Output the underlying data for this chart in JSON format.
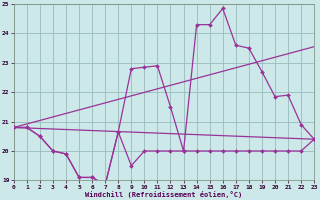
{
  "background_color": "#cce8e8",
  "grid_color": "#99bbbb",
  "line_color": "#993399",
  "xlim": [
    0,
    23
  ],
  "ylim": [
    19,
    25
  ],
  "yticks": [
    19,
    20,
    21,
    22,
    23,
    24,
    25
  ],
  "xticks": [
    0,
    1,
    2,
    3,
    4,
    5,
    6,
    7,
    8,
    9,
    10,
    11,
    12,
    13,
    14,
    15,
    16,
    17,
    18,
    19,
    20,
    21,
    22,
    23
  ],
  "xlabel": "Windchill (Refroidissement éolien,°C)",
  "series_a_x": [
    0,
    1,
    2,
    3,
    4,
    5,
    6,
    7,
    8,
    9,
    10,
    11,
    12,
    13,
    14,
    15,
    16,
    17,
    18,
    19,
    20,
    21,
    22,
    23
  ],
  "series_a_y": [
    20.8,
    20.8,
    20.5,
    20.0,
    19.9,
    19.1,
    19.1,
    18.85,
    20.65,
    19.5,
    20.0,
    20.0,
    20.0,
    20.0,
    20.0,
    20.0,
    20.0,
    20.0,
    20.0,
    20.0,
    20.0,
    20.0,
    20.0,
    20.4
  ],
  "series_b_x": [
    0,
    1,
    2,
    3,
    4,
    5,
    6,
    7,
    8,
    9,
    10,
    11,
    12,
    13,
    14,
    15,
    16,
    17,
    18,
    19,
    20,
    21,
    22,
    23
  ],
  "series_b_y": [
    20.8,
    20.8,
    20.5,
    20.0,
    19.9,
    19.1,
    19.1,
    18.85,
    20.65,
    22.8,
    22.85,
    22.9,
    21.5,
    20.0,
    24.3,
    24.3,
    24.85,
    23.6,
    23.5,
    22.7,
    21.85,
    21.9,
    20.9,
    20.4
  ],
  "trend1_x": [
    0,
    23
  ],
  "trend1_y": [
    20.8,
    23.55
  ],
  "trend2_x": [
    0,
    23
  ],
  "trend2_y": [
    20.8,
    20.4
  ]
}
